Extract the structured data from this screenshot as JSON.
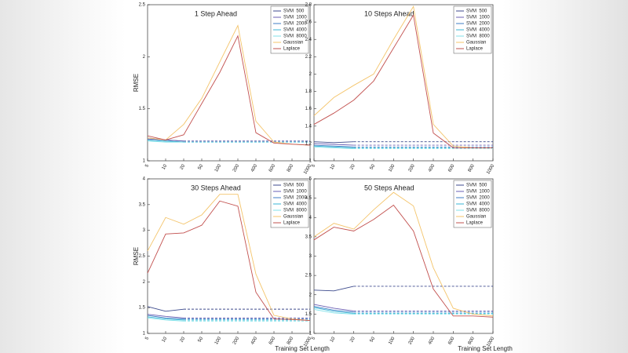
{
  "chart_data": [
    {
      "type": "line",
      "title": "1 Step Ahead",
      "ylabel": "RMSE",
      "categories": [
        "5",
        "10",
        "20",
        "50",
        "100",
        "200",
        "400",
        "600",
        "800",
        "1000"
      ],
      "ylim": [
        1,
        2.5
      ],
      "yticks": [
        1,
        1.5,
        2,
        2.5
      ],
      "series": [
        {
          "name": "SVM  500",
          "color": "#3c4a8c",
          "dashed_from": 2,
          "values": [
            1.22,
            1.2,
            1.19,
            1.19,
            1.19,
            1.19,
            1.19,
            1.19,
            1.19,
            1.19
          ]
        },
        {
          "name": "SVM  1000",
          "color": "#6a5fb4",
          "dashed_from": 2,
          "values": [
            1.21,
            1.2,
            1.19,
            1.19,
            1.19,
            1.19,
            1.19,
            1.19,
            1.19,
            1.19
          ]
        },
        {
          "name": "SVM  2000",
          "color": "#3f7ec4",
          "dashed_from": 2,
          "values": [
            1.2,
            1.19,
            1.18,
            1.18,
            1.18,
            1.18,
            1.18,
            1.18,
            1.18,
            1.18
          ]
        },
        {
          "name": "SVM  4000",
          "color": "#38b4d4",
          "dashed_from": 2,
          "values": [
            1.2,
            1.19,
            1.18,
            1.18,
            1.18,
            1.18,
            1.18,
            1.18,
            1.18,
            1.18
          ]
        },
        {
          "name": "SVM  8000",
          "color": "#80e2ea",
          "dashed_from": 2,
          "values": [
            1.19,
            1.18,
            1.18,
            1.18,
            1.18,
            1.18,
            1.18,
            1.18,
            1.18,
            1.18
          ]
        },
        {
          "name": "Gaussian",
          "color": "#f4c46a",
          "values": [
            1.22,
            1.2,
            1.35,
            1.6,
            1.95,
            2.3,
            1.38,
            1.18,
            1.16,
            1.15
          ]
        },
        {
          "name": "Laplace",
          "color": "#c2504e",
          "values": [
            1.24,
            1.2,
            1.25,
            1.55,
            1.85,
            2.2,
            1.27,
            1.17,
            1.16,
            1.15
          ]
        }
      ]
    },
    {
      "type": "line",
      "title": "10 Steps Ahead",
      "categories": [
        "5",
        "10",
        "20",
        "50",
        "100",
        "200",
        "400",
        "600",
        "800",
        "1000"
      ],
      "ylim": [
        1,
        2.8
      ],
      "yticks": [
        1,
        1.2,
        1.4,
        1.6,
        1.8,
        2,
        2.2,
        2.4,
        2.6,
        2.8
      ],
      "series": [
        {
          "name": "SVM  500",
          "color": "#3c4a8c",
          "dashed_from": 2,
          "values": [
            1.22,
            1.21,
            1.22,
            1.22,
            1.22,
            1.22,
            1.22,
            1.22,
            1.22,
            1.22
          ]
        },
        {
          "name": "SVM  1000",
          "color": "#6a5fb4",
          "dashed_from": 2,
          "values": [
            1.2,
            1.19,
            1.18,
            1.18,
            1.18,
            1.18,
            1.18,
            1.18,
            1.18,
            1.18
          ]
        },
        {
          "name": "SVM  2000",
          "color": "#3f7ec4",
          "dashed_from": 2,
          "values": [
            1.18,
            1.17,
            1.16,
            1.16,
            1.16,
            1.16,
            1.16,
            1.16,
            1.16,
            1.16
          ]
        },
        {
          "name": "SVM  4000",
          "color": "#38b4d4",
          "dashed_from": 2,
          "values": [
            1.17,
            1.16,
            1.15,
            1.15,
            1.15,
            1.15,
            1.15,
            1.15,
            1.15,
            1.15
          ]
        },
        {
          "name": "SVM  8000",
          "color": "#80e2ea",
          "dashed_from": 2,
          "values": [
            1.16,
            1.15,
            1.14,
            1.14,
            1.14,
            1.14,
            1.14,
            1.14,
            1.14,
            1.14
          ]
        },
        {
          "name": "Gaussian",
          "color": "#f4c46a",
          "values": [
            1.52,
            1.73,
            1.87,
            2.0,
            2.4,
            2.78,
            1.42,
            1.17,
            1.15,
            1.15
          ]
        },
        {
          "name": "Laplace",
          "color": "#c2504e",
          "values": [
            1.42,
            1.55,
            1.7,
            1.92,
            2.3,
            2.68,
            1.32,
            1.15,
            1.15,
            1.15
          ]
        }
      ]
    },
    {
      "type": "line",
      "title": "30 Steps Ahead",
      "ylabel": "RMSE",
      "xlabel": "Training Set Length",
      "categories": [
        "5",
        "10",
        "20",
        "50",
        "100",
        "200",
        "400",
        "600",
        "800",
        "1000"
      ],
      "ylim": [
        1,
        4
      ],
      "yticks": [
        1,
        1.5,
        2,
        2.5,
        3,
        3.5,
        4
      ],
      "series": [
        {
          "name": "SVM  500",
          "color": "#3c4a8c",
          "dashed_from": 2,
          "values": [
            1.52,
            1.43,
            1.47,
            1.47,
            1.47,
            1.47,
            1.47,
            1.47,
            1.47,
            1.47
          ]
        },
        {
          "name": "SVM  1000",
          "color": "#6a5fb4",
          "dashed_from": 2,
          "values": [
            1.37,
            1.33,
            1.3,
            1.3,
            1.3,
            1.3,
            1.3,
            1.3,
            1.3,
            1.3
          ]
        },
        {
          "name": "SVM  2000",
          "color": "#3f7ec4",
          "dashed_from": 2,
          "values": [
            1.35,
            1.3,
            1.28,
            1.28,
            1.28,
            1.28,
            1.28,
            1.28,
            1.28,
            1.28
          ]
        },
        {
          "name": "SVM  4000",
          "color": "#38b4d4",
          "dashed_from": 2,
          "values": [
            1.32,
            1.28,
            1.26,
            1.26,
            1.26,
            1.26,
            1.26,
            1.26,
            1.26,
            1.26
          ]
        },
        {
          "name": "SVM  8000",
          "color": "#80e2ea",
          "dashed_from": 2,
          "values": [
            1.3,
            1.26,
            1.24,
            1.24,
            1.24,
            1.24,
            1.24,
            1.24,
            1.24,
            1.24
          ]
        },
        {
          "name": "Gaussian",
          "color": "#f4c46a",
          "values": [
            2.6,
            3.25,
            3.12,
            3.3,
            3.7,
            3.7,
            2.15,
            1.35,
            1.28,
            1.25
          ]
        },
        {
          "name": "Laplace",
          "color": "#c2504e",
          "values": [
            2.17,
            2.93,
            2.95,
            3.1,
            3.57,
            3.47,
            1.8,
            1.28,
            1.27,
            1.25
          ]
        }
      ]
    },
    {
      "type": "line",
      "title": "50 Steps Ahead",
      "xlabel": "Training Set Length",
      "categories": [
        "5",
        "10",
        "20",
        "50",
        "100",
        "200",
        "400",
        "600",
        "800",
        "1000"
      ],
      "ylim": [
        1,
        5
      ],
      "yticks": [
        1,
        1.5,
        2,
        2.5,
        3,
        3.5,
        4,
        4.5,
        5
      ],
      "series": [
        {
          "name": "SVM  500",
          "color": "#3c4a8c",
          "dashed_from": 2,
          "values": [
            2.12,
            2.1,
            2.22,
            2.22,
            2.22,
            2.22,
            2.22,
            2.22,
            2.22,
            2.22
          ]
        },
        {
          "name": "SVM  1000",
          "color": "#6a5fb4",
          "dashed_from": 2,
          "values": [
            1.75,
            1.65,
            1.58,
            1.58,
            1.58,
            1.58,
            1.58,
            1.58,
            1.58,
            1.58
          ]
        },
        {
          "name": "SVM  2000",
          "color": "#3f7ec4",
          "dashed_from": 2,
          "values": [
            1.7,
            1.6,
            1.55,
            1.55,
            1.55,
            1.55,
            1.55,
            1.55,
            1.55,
            1.55
          ]
        },
        {
          "name": "SVM  4000",
          "color": "#38b4d4",
          "dashed_from": 2,
          "values": [
            1.67,
            1.57,
            1.52,
            1.52,
            1.52,
            1.52,
            1.52,
            1.52,
            1.52,
            1.52
          ]
        },
        {
          "name": "SVM  8000",
          "color": "#80e2ea",
          "dashed_from": 2,
          "values": [
            1.62,
            1.53,
            1.5,
            1.5,
            1.5,
            1.5,
            1.5,
            1.5,
            1.5,
            1.5
          ]
        },
        {
          "name": "Gaussian",
          "color": "#f4c46a",
          "values": [
            3.5,
            3.85,
            3.7,
            4.2,
            4.65,
            4.3,
            2.7,
            1.65,
            1.5,
            1.45
          ]
        },
        {
          "name": "Laplace",
          "color": "#c2504e",
          "values": [
            3.42,
            3.75,
            3.65,
            3.95,
            4.32,
            3.65,
            2.15,
            1.45,
            1.45,
            1.42
          ]
        }
      ]
    }
  ]
}
